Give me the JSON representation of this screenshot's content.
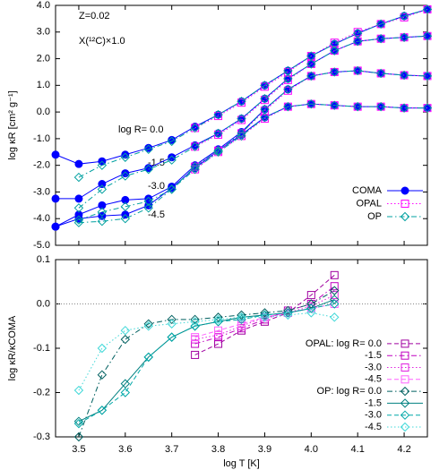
{
  "chart_data": [
    {
      "type": "line",
      "y_label": "log κR [cm² g⁻¹]",
      "annotations": [
        "Z=0.02",
        "X(¹²C)×1.0",
        "log R= 0.0",
        "-1.5",
        "-3.0",
        "-4.5"
      ],
      "xlim": [
        3.45,
        4.25
      ],
      "xticks": [
        3.5,
        3.6,
        3.7,
        3.8,
        3.9,
        4.0,
        4.1,
        4.2
      ],
      "ylim": [
        -5,
        4
      ],
      "yticks": [
        {
          "value": -5,
          "label": "-5.0"
        },
        {
          "value": -4,
          "label": "-4.0"
        },
        {
          "value": -3,
          "label": "-3.0"
        },
        {
          "value": -2,
          "label": "-2.0"
        },
        {
          "value": -1,
          "label": "-1.0"
        },
        {
          "value": 0,
          "label": "0.0"
        },
        {
          "value": 1,
          "label": "1.0"
        },
        {
          "value": 2,
          "label": "2.0"
        },
        {
          "value": 3,
          "label": "3.0"
        },
        {
          "value": 4,
          "label": "4.0"
        }
      ],
      "legend": "lower right",
      "series": [
        {
          "name": "COMA",
          "color": "#0000ff",
          "marker": "circle",
          "filled": true,
          "line_style": "solid",
          "x": [
            3.45,
            3.5,
            3.55,
            3.6,
            3.65,
            3.7,
            3.75,
            3.8,
            3.85,
            3.9,
            3.95,
            4.0,
            4.05,
            4.1,
            4.15,
            4.2,
            4.25
          ],
          "values": [
            [
              -1.6,
              -1.95,
              -1.85,
              -1.6,
              -1.35,
              -1.05,
              -0.55,
              -0.1,
              0.4,
              1.0,
              1.55,
              2.1,
              2.55,
              2.95,
              3.3,
              3.6,
              3.85
            ],
            [
              -3.25,
              -3.25,
              -2.7,
              -2.3,
              -2.1,
              -1.7,
              -1.25,
              -0.8,
              -0.25,
              0.5,
              1.25,
              1.8,
              2.3,
              2.65,
              2.75,
              2.8,
              2.85
            ],
            [
              -4.3,
              -3.85,
              -3.5,
              -3.3,
              -3.25,
              -2.8,
              -2.0,
              -1.4,
              -0.75,
              0.1,
              0.85,
              1.35,
              1.5,
              1.55,
              1.45,
              1.38,
              1.35
            ],
            [
              -4.3,
              -4.0,
              -3.9,
              -3.85,
              -3.5,
              -2.85,
              -2.1,
              -1.45,
              -0.85,
              -0.2,
              0.2,
              0.3,
              0.25,
              0.2,
              0.2,
              0.15,
              0.15
            ]
          ]
        },
        {
          "name": "OPAL",
          "color": "#ff00ff",
          "marker": "square",
          "filled": false,
          "line_style": "dotted",
          "x": [
            3.75,
            3.8,
            3.85,
            3.9,
            3.95,
            4.0,
            4.05,
            4.1,
            4.15,
            4.2,
            4.25
          ],
          "values": [
            [
              -0.6,
              -0.15,
              0.35,
              0.95,
              1.5,
              2.1,
              2.6,
              3.0,
              3.3,
              3.55,
              3.85
            ],
            [
              -1.3,
              -0.85,
              -0.3,
              0.45,
              1.2,
              1.8,
              2.3,
              2.65,
              2.75,
              2.8,
              2.85
            ],
            [
              -2.05,
              -1.45,
              -0.8,
              0.05,
              0.8,
              1.35,
              1.5,
              1.55,
              1.45,
              1.38,
              1.35
            ],
            [
              -2.15,
              -1.5,
              -0.9,
              -0.25,
              0.2,
              0.3,
              0.25,
              0.2,
              0.2,
              0.15,
              0.15
            ]
          ]
        },
        {
          "name": "OP",
          "color": "#00a0a0",
          "marker": "diamond",
          "filled": false,
          "line_style": "dashdot",
          "x": [
            3.5,
            3.55,
            3.6,
            3.65,
            3.7,
            3.75,
            3.8,
            3.85,
            3.9,
            3.95,
            4.0,
            4.05,
            4.1,
            4.15,
            4.2,
            4.25
          ],
          "values": [
            [
              -2.45,
              -2.0,
              -1.7,
              -1.4,
              -1.1,
              -0.6,
              -0.1,
              0.4,
              1.0,
              1.55,
              2.1,
              2.55,
              2.95,
              3.3,
              3.6,
              3.85
            ],
            [
              -3.6,
              -2.9,
              -2.4,
              -2.15,
              -1.8,
              -1.3,
              -0.8,
              -0.25,
              0.5,
              1.25,
              1.8,
              2.3,
              2.65,
              2.75,
              2.8,
              2.85
            ],
            [
              -4.05,
              -3.75,
              -3.55,
              -3.35,
              -2.9,
              -2.05,
              -1.45,
              -0.8,
              0.1,
              0.85,
              1.35,
              1.5,
              1.55,
              1.45,
              1.38,
              1.35
            ],
            [
              -4.15,
              -4.1,
              -4.0,
              -3.6,
              -2.9,
              -2.15,
              -1.5,
              -0.9,
              -0.2,
              0.2,
              0.3,
              0.25,
              0.2,
              0.2,
              0.15,
              0.15
            ]
          ]
        }
      ]
    },
    {
      "type": "line",
      "x_label": "log T [K]",
      "y_label": "log κR/κCOMA",
      "xlim": [
        3.45,
        4.25
      ],
      "xticks": [
        3.5,
        3.6,
        3.7,
        3.8,
        3.9,
        {
          "value": 4,
          "label": "4.0"
        },
        4.1,
        4.2
      ],
      "ylim": [
        -0.3,
        0.1
      ],
      "yticks": [
        -0.3,
        -0.2,
        -0.1,
        {
          "value": 0,
          "label": "0.0"
        },
        0.1
      ],
      "zero_line": true,
      "legend": "lower right",
      "series": [
        {
          "name": "OPAL: log R= 0.0",
          "color": "#a000a0",
          "marker": "square",
          "line_style": "dashed",
          "x": [
            3.75,
            3.8,
            3.85,
            3.9,
            3.95,
            4.0,
            4.05
          ],
          "values": [
            -0.115,
            -0.09,
            -0.06,
            -0.04,
            -0.02,
            0.02,
            0.065
          ]
        },
        {
          "name": "-1.5",
          "color": "#c000c0",
          "marker": "square",
          "line_style": "dashdot",
          "x": [
            3.75,
            3.8,
            3.85,
            3.9,
            3.95,
            4.0,
            4.05
          ],
          "values": [
            -0.09,
            -0.075,
            -0.055,
            -0.035,
            -0.015,
            0.0,
            0.04
          ]
        },
        {
          "name": "-3.0",
          "color": "#e020e0",
          "marker": "square",
          "line_style": "dotted",
          "x": [
            3.75,
            3.8,
            3.85,
            3.9,
            3.95,
            4.0,
            4.05
          ],
          "values": [
            -0.08,
            -0.07,
            -0.05,
            -0.03,
            -0.02,
            -0.005,
            0.02
          ]
        },
        {
          "name": "-4.5",
          "color": "#ff60ff",
          "marker": "square",
          "line_style": "dashed",
          "x": [
            3.75,
            3.8,
            3.85,
            3.9,
            3.95,
            4.0,
            4.05
          ],
          "values": [
            -0.075,
            -0.06,
            -0.045,
            -0.03,
            -0.02,
            -0.01,
            0.0
          ]
        },
        {
          "name": "OP: log R= 0.0",
          "color": "#006060",
          "marker": "diamond",
          "line_style": "dashdot",
          "x": [
            3.5,
            3.55,
            3.6,
            3.65,
            3.7,
            3.75,
            3.8,
            3.85,
            3.9,
            3.95,
            4.0,
            4.05
          ],
          "values": [
            -0.3,
            -0.16,
            -0.08,
            -0.045,
            -0.035,
            -0.035,
            -0.03,
            -0.025,
            -0.02,
            -0.015,
            0.0,
            0.03
          ]
        },
        {
          "name": "-1.5",
          "color": "#008080",
          "marker": "diamond",
          "line_style": "solid",
          "x": [
            3.5,
            3.55,
            3.6,
            3.65,
            3.7,
            3.75,
            3.8,
            3.85,
            3.9,
            3.95,
            4.0,
            4.05
          ],
          "values": [
            -0.265,
            -0.24,
            -0.18,
            -0.12,
            -0.075,
            -0.05,
            -0.04,
            -0.03,
            -0.025,
            -0.02,
            -0.01,
            0.01
          ]
        },
        {
          "name": "-3.0",
          "color": "#00a8a8",
          "marker": "diamond",
          "line_style": "dashed",
          "x": [
            3.5,
            3.55,
            3.6,
            3.65,
            3.7,
            3.75,
            3.8,
            3.85,
            3.9,
            3.95,
            4.0,
            4.05
          ],
          "values": [
            -0.27,
            -0.24,
            -0.2,
            -0.12,
            -0.075,
            -0.05,
            -0.04,
            -0.035,
            -0.025,
            -0.02,
            -0.01,
            0.0
          ]
        },
        {
          "name": "-4.5",
          "color": "#40d8d8",
          "marker": "diamond",
          "line_style": "dotted",
          "x": [
            3.5,
            3.55,
            3.6,
            3.65,
            3.7,
            3.75,
            3.8,
            3.85,
            3.9,
            3.95,
            4.0,
            4.05
          ],
          "values": [
            -0.195,
            -0.1,
            -0.06,
            -0.05,
            -0.045,
            -0.04,
            -0.035,
            -0.03,
            -0.03,
            -0.025,
            -0.02,
            -0.03
          ]
        }
      ]
    }
  ]
}
